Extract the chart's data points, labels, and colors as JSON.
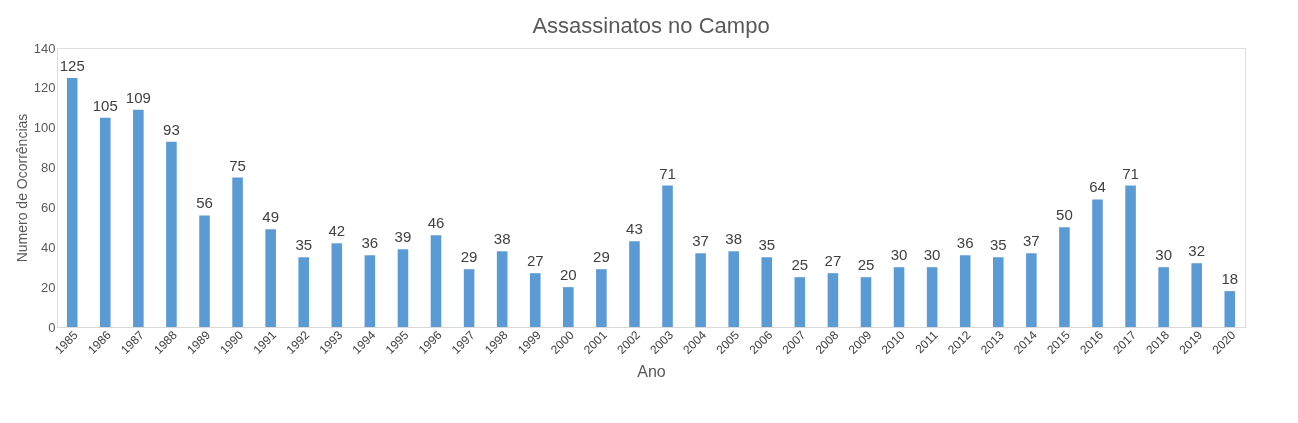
{
  "chart_data": {
    "type": "bar",
    "title": "Assassinatos no Campo",
    "xlabel": "Ano",
    "ylabel": "Numero de Ocorrências",
    "categories": [
      "1985",
      "1986",
      "1987",
      "1988",
      "1989",
      "1990",
      "1991",
      "1992",
      "1993",
      "1994",
      "1995",
      "1996",
      "1997",
      "1998",
      "1999",
      "2000",
      "2001",
      "2002",
      "2003",
      "2004",
      "2005",
      "2006",
      "2007",
      "2008",
      "2009",
      "2010",
      "2011",
      "2012",
      "2013",
      "2014",
      "2015",
      "2016",
      "2017",
      "2018",
      "2019",
      "2020"
    ],
    "values": [
      125,
      105,
      109,
      93,
      56,
      75,
      49,
      35,
      42,
      36,
      39,
      46,
      29,
      38,
      27,
      20,
      29,
      43,
      71,
      37,
      38,
      35,
      25,
      27,
      25,
      30,
      30,
      36,
      35,
      37,
      50,
      64,
      71,
      30,
      32,
      18
    ],
    "color": "#5b9bd5",
    "ylim": [
      0,
      140
    ],
    "yticks": [
      0,
      20,
      40,
      60,
      80,
      100,
      120,
      140
    ],
    "grid": false,
    "data_labels": true
  }
}
